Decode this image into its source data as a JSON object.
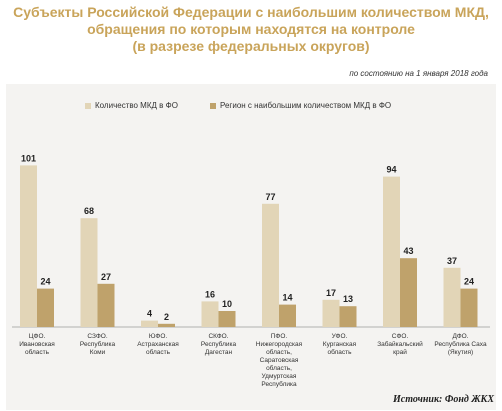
{
  "header": {
    "title_lines": [
      "Субъекты Российской Федерации с наибольшим количеством МКД,",
      "обращения по которым находятся на контроле",
      "(в разрезе федеральных округов)"
    ],
    "as_of": "по состоянию на 1 января 2018 года"
  },
  "source": "Источник: Фонд ЖКХ",
  "colors": {
    "series1": "#e2d5b7",
    "series2": "#bfa26b",
    "title": "#c9a45a",
    "panel": "#f4f3f1"
  },
  "chart_data": {
    "type": "bar",
    "categories": [
      "ЦФО. Ивановская область",
      "СЗФО. Республика Коми",
      "ЮФО. Астраханская область",
      "СКФО. Республика Дагестан",
      "ПФО. Нижегородская область, Саратовская область, Удмуртская Республика",
      "УФО. Курганская область",
      "СФО. Забайкальский край",
      "ДФО. Республика Саха (Якутия)"
    ],
    "category_lines": [
      [
        "ЦФО.",
        "Ивановская",
        "область"
      ],
      [
        "СЗФО.",
        "Республика",
        "Коми"
      ],
      [
        "ЮФО.",
        "Астраханская",
        "область"
      ],
      [
        "СКФО.",
        "Республика",
        "Дагестан"
      ],
      [
        "ПФО.",
        "Нижегородская",
        "область,",
        "Саратовская",
        "область,",
        "Удмуртская",
        "Республика"
      ],
      [
        "УФО.",
        "Курганская",
        "область"
      ],
      [
        "СФО.",
        "Забайкальский",
        "край"
      ],
      [
        "ДФО.",
        "Республика Саха",
        "(Якутия)"
      ]
    ],
    "series": [
      {
        "name": "Количество МКД в ФО",
        "values": [
          101,
          68,
          4,
          16,
          77,
          17,
          94,
          37
        ]
      },
      {
        "name": "Регион с наибольшим количеством МКД в ФО",
        "values": [
          24,
          27,
          2,
          10,
          14,
          13,
          43,
          24
        ]
      }
    ],
    "ylim": [
      0,
      110
    ],
    "grid": false,
    "legend": "top"
  }
}
